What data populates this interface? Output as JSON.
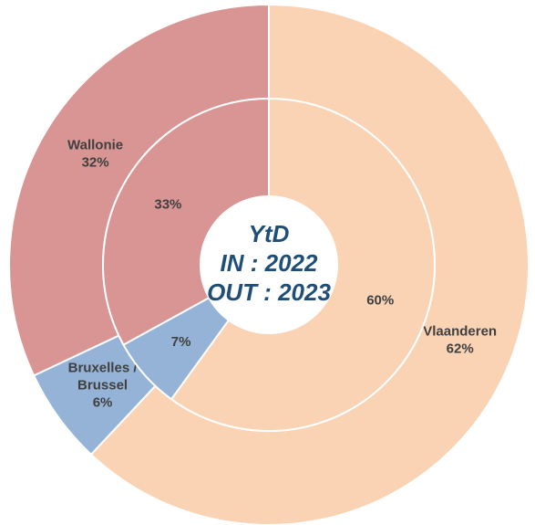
{
  "chart_data": {
    "type": "donut",
    "categories": [
      "Vlaanderen",
      "Bruxelles / Brussel",
      "Wallonie"
    ],
    "colors": [
      "#fad3b4",
      "#95b3d7",
      "#d99594"
    ],
    "center_text": [
      "YtD",
      "IN : 2022",
      "OUT : 2023"
    ],
    "series": [
      {
        "values": [
          62,
          6,
          32
        ],
        "value_labels": [
          "62%",
          "6%",
          "32%"
        ]
      },
      {
        "values": [
          60,
          7,
          33
        ],
        "value_labels": [
          "60%",
          "7%",
          "33%"
        ]
      }
    ]
  }
}
